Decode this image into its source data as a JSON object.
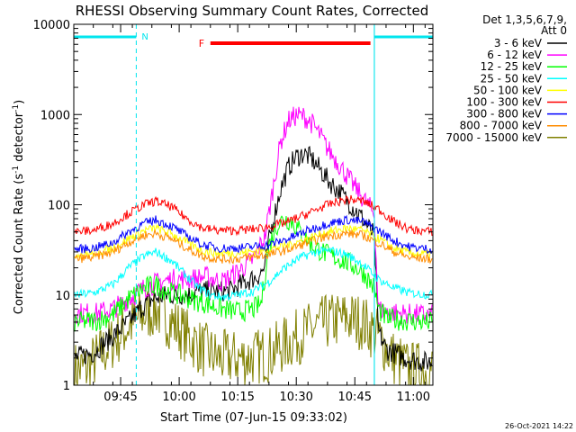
{
  "chart_data": {
    "type": "line",
    "title": "RHESSI Observing Summary Count Rates, Corrected",
    "xlabel": "Start Time (07-Jun-15 09:33:02)",
    "ylabel_main": "Corrected Count Rate (s",
    "ylabel_sup1": "-1",
    "ylabel_mid": " detector",
    "ylabel_sup2": "-1",
    "ylabel_end": ")",
    "yscale": "log",
    "ylim": [
      1,
      10000
    ],
    "xlim_minutes": [
      0,
      92
    ],
    "x_unit": "minutes after 09:33:02",
    "y_ticks": [
      {
        "value": 1,
        "label": "1"
      },
      {
        "value": 10,
        "label": "10"
      },
      {
        "value": 100,
        "label": "100"
      },
      {
        "value": 1000,
        "label": "1000"
      },
      {
        "value": 10000,
        "label": "10000"
      }
    ],
    "x_ticks": [
      {
        "value": 12,
        "label": "09:45"
      },
      {
        "value": 27,
        "label": "10:00"
      },
      {
        "value": 42,
        "label": "10:15"
      },
      {
        "value": 57,
        "label": "10:30"
      },
      {
        "value": 72,
        "label": "10:45"
      },
      {
        "value": 87,
        "label": "11:00"
      }
    ],
    "detectors": "Det 1,3,5,6,7,9,",
    "attenuator": "Att 0",
    "footer_date": "26-Oct-2021 14:22",
    "night_label": "N",
    "flare_label": "F",
    "night_intervals": [
      [
        0,
        16
      ],
      [
        77,
        92
      ]
    ],
    "flare_interval": [
      35,
      76
    ],
    "series": [
      {
        "name": "3 - 6 keV",
        "color": "#000000",
        "points": [
          [
            0,
            2
          ],
          [
            5,
            2.3
          ],
          [
            10,
            3.5
          ],
          [
            14,
            5
          ],
          [
            17,
            7
          ],
          [
            20,
            9
          ],
          [
            24,
            10
          ],
          [
            28,
            10
          ],
          [
            32,
            11
          ],
          [
            36,
            11
          ],
          [
            40,
            11
          ],
          [
            44,
            14
          ],
          [
            47,
            16
          ],
          [
            49,
            20
          ],
          [
            50,
            40
          ],
          [
            51,
            65
          ],
          [
            53,
            150
          ],
          [
            55,
            260
          ],
          [
            57,
            340
          ],
          [
            59,
            370
          ],
          [
            61,
            320
          ],
          [
            63,
            250
          ],
          [
            65,
            190
          ],
          [
            68,
            140
          ],
          [
            71,
            100
          ],
          [
            74,
            70
          ],
          [
            77,
            45
          ],
          [
            78,
            4
          ],
          [
            80,
            2.5
          ],
          [
            85,
            2
          ],
          [
            90,
            1.8
          ],
          [
            92,
            1.8
          ]
        ]
      },
      {
        "name": "6 - 12 keV",
        "color": "#ff00ff",
        "points": [
          [
            0,
            6.3
          ],
          [
            6,
            6.3
          ],
          [
            10,
            7
          ],
          [
            14,
            9
          ],
          [
            18,
            12
          ],
          [
            22,
            14
          ],
          [
            26,
            15
          ],
          [
            30,
            15
          ],
          [
            34,
            16
          ],
          [
            38,
            14
          ],
          [
            42,
            18
          ],
          [
            46,
            25
          ],
          [
            49,
            45
          ],
          [
            51,
            150
          ],
          [
            53,
            500
          ],
          [
            55,
            850
          ],
          [
            57,
            980
          ],
          [
            59,
            950
          ],
          [
            61,
            800
          ],
          [
            63,
            600
          ],
          [
            65,
            420
          ],
          [
            68,
            280
          ],
          [
            71,
            180
          ],
          [
            74,
            120
          ],
          [
            77,
            80
          ],
          [
            78,
            7
          ],
          [
            80,
            6.5
          ],
          [
            85,
            6.2
          ],
          [
            90,
            6
          ],
          [
            92,
            6
          ]
        ]
      },
      {
        "name": "12 - 25 keV",
        "color": "#00ff00",
        "points": [
          [
            0,
            5
          ],
          [
            6,
            5.2
          ],
          [
            10,
            6
          ],
          [
            14,
            9
          ],
          [
            18,
            12
          ],
          [
            21,
            13
          ],
          [
            24,
            11
          ],
          [
            27,
            10
          ],
          [
            30,
            9
          ],
          [
            34,
            8
          ],
          [
            38,
            7
          ],
          [
            42,
            6.5
          ],
          [
            46,
            7
          ],
          [
            48,
            8
          ],
          [
            50,
            35
          ],
          [
            52,
            60
          ],
          [
            54,
            70
          ],
          [
            56,
            65
          ],
          [
            58,
            50
          ],
          [
            60,
            40
          ],
          [
            62,
            33
          ],
          [
            65,
            28
          ],
          [
            68,
            25
          ],
          [
            71,
            22
          ],
          [
            74,
            18
          ],
          [
            77,
            12
          ],
          [
            78,
            7
          ],
          [
            80,
            5.5
          ],
          [
            85,
            5.2
          ],
          [
            90,
            5
          ],
          [
            92,
            5
          ]
        ]
      },
      {
        "name": "25 - 50 keV",
        "color": "#00ffff",
        "points": [
          [
            0,
            10
          ],
          [
            5,
            10.5
          ],
          [
            10,
            13
          ],
          [
            14,
            20
          ],
          [
            18,
            27
          ],
          [
            21,
            30
          ],
          [
            25,
            24
          ],
          [
            29,
            16
          ],
          [
            32,
            12
          ],
          [
            35,
            10
          ],
          [
            38,
            9.5
          ],
          [
            42,
            10
          ],
          [
            46,
            11
          ],
          [
            50,
            14
          ],
          [
            54,
            20
          ],
          [
            58,
            26
          ],
          [
            62,
            30
          ],
          [
            66,
            31
          ],
          [
            70,
            28
          ],
          [
            74,
            22
          ],
          [
            78,
            15
          ],
          [
            82,
            12
          ],
          [
            86,
            10.5
          ],
          [
            92,
            10
          ]
        ]
      },
      {
        "name": "50 - 100 keV",
        "color": "#ffff00",
        "points": [
          [
            0,
            28
          ],
          [
            5,
            29
          ],
          [
            10,
            33
          ],
          [
            14,
            42
          ],
          [
            18,
            52
          ],
          [
            21,
            55
          ],
          [
            25,
            48
          ],
          [
            29,
            38
          ],
          [
            33,
            31
          ],
          [
            37,
            29
          ],
          [
            41,
            29
          ],
          [
            45,
            30
          ],
          [
            50,
            32
          ],
          [
            55,
            36
          ],
          [
            60,
            42
          ],
          [
            65,
            50
          ],
          [
            70,
            55
          ],
          [
            74,
            52
          ],
          [
            78,
            42
          ],
          [
            82,
            33
          ],
          [
            86,
            29
          ],
          [
            92,
            28
          ]
        ]
      },
      {
        "name": "100 - 300 keV",
        "color": "#ff0000",
        "points": [
          [
            0,
            50
          ],
          [
            5,
            52
          ],
          [
            10,
            62
          ],
          [
            14,
            80
          ],
          [
            18,
            100
          ],
          [
            21,
            110
          ],
          [
            25,
            95
          ],
          [
            29,
            70
          ],
          [
            33,
            55
          ],
          [
            37,
            52
          ],
          [
            41,
            52
          ],
          [
            45,
            53
          ],
          [
            50,
            57
          ],
          [
            55,
            65
          ],
          [
            60,
            80
          ],
          [
            65,
            100
          ],
          [
            70,
            115
          ],
          [
            74,
            110
          ],
          [
            78,
            90
          ],
          [
            82,
            65
          ],
          [
            86,
            53
          ],
          [
            92,
            50
          ]
        ]
      },
      {
        "name": "300 - 800 keV",
        "color": "#0000ff",
        "points": [
          [
            0,
            32
          ],
          [
            5,
            33
          ],
          [
            10,
            38
          ],
          [
            14,
            50
          ],
          [
            18,
            62
          ],
          [
            21,
            68
          ],
          [
            25,
            58
          ],
          [
            29,
            45
          ],
          [
            33,
            36
          ],
          [
            37,
            33
          ],
          [
            41,
            33
          ],
          [
            45,
            34
          ],
          [
            50,
            36
          ],
          [
            55,
            42
          ],
          [
            60,
            52
          ],
          [
            65,
            62
          ],
          [
            70,
            68
          ],
          [
            74,
            65
          ],
          [
            78,
            52
          ],
          [
            82,
            40
          ],
          [
            86,
            34
          ],
          [
            92,
            32
          ]
        ]
      },
      {
        "name": "800 - 7000 keV",
        "color": "#ff8c00",
        "points": [
          [
            0,
            25
          ],
          [
            5,
            26
          ],
          [
            10,
            30
          ],
          [
            14,
            38
          ],
          [
            18,
            46
          ],
          [
            21,
            48
          ],
          [
            25,
            42
          ],
          [
            29,
            33
          ],
          [
            33,
            27
          ],
          [
            37,
            25
          ],
          [
            41,
            25
          ],
          [
            45,
            26
          ],
          [
            50,
            28
          ],
          [
            55,
            32
          ],
          [
            60,
            38
          ],
          [
            65,
            45
          ],
          [
            70,
            48
          ],
          [
            74,
            46
          ],
          [
            78,
            38
          ],
          [
            82,
            30
          ],
          [
            86,
            26
          ],
          [
            92,
            25
          ]
        ]
      },
      {
        "name": "7000 - 15000 keV",
        "color": "#808000",
        "points": [
          [
            0,
            1.5
          ],
          [
            3,
            1.5
          ],
          [
            6,
            2
          ],
          [
            10,
            3
          ],
          [
            14,
            4.5
          ],
          [
            18,
            6
          ],
          [
            21,
            7
          ],
          [
            25,
            5
          ],
          [
            29,
            3.5
          ],
          [
            33,
            2.5
          ],
          [
            37,
            2
          ],
          [
            41,
            2
          ],
          [
            45,
            2
          ],
          [
            50,
            2.2
          ],
          [
            55,
            3
          ],
          [
            60,
            4
          ],
          [
            65,
            5
          ],
          [
            70,
            5.5
          ],
          [
            74,
            5
          ],
          [
            78,
            3.5
          ],
          [
            82,
            2
          ],
          [
            86,
            1.5
          ],
          [
            92,
            1.5
          ]
        ]
      }
    ]
  }
}
